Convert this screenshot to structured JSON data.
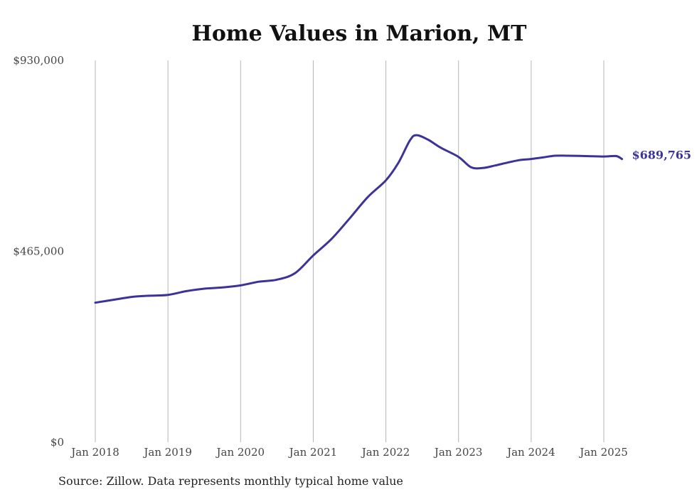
{
  "chart_data": {
    "type": "line",
    "title": "Home Values in Marion, MT",
    "xlabel": "",
    "ylabel": "",
    "ylim": [
      0,
      930000
    ],
    "yticks": [
      {
        "value": 0,
        "label": "$0"
      },
      {
        "value": 465000,
        "label": "$465,000"
      },
      {
        "value": 930000,
        "label": "$930,000"
      }
    ],
    "xticks": [
      {
        "value": 2018.0,
        "label": "Jan 2018"
      },
      {
        "value": 2019.0,
        "label": "Jan 2019"
      },
      {
        "value": 2020.0,
        "label": "Jan 2020"
      },
      {
        "value": 2021.0,
        "label": "Jan 2021"
      },
      {
        "value": 2022.0,
        "label": "Jan 2022"
      },
      {
        "value": 2023.0,
        "label": "Jan 2023"
      },
      {
        "value": 2024.0,
        "label": "Jan 2024"
      },
      {
        "value": 2025.0,
        "label": "Jan 2025"
      }
    ],
    "grid": {
      "vertical": true,
      "horizontal": false
    },
    "line_color": "#3c3399",
    "series": [
      {
        "name": "",
        "points": [
          [
            2018.0,
            340000
          ],
          [
            2018.25,
            347000
          ],
          [
            2018.5,
            354000
          ],
          [
            2018.75,
            357000
          ],
          [
            2019.0,
            359000
          ],
          [
            2019.25,
            368000
          ],
          [
            2019.5,
            374000
          ],
          [
            2019.75,
            377000
          ],
          [
            2020.0,
            382000
          ],
          [
            2020.25,
            391000
          ],
          [
            2020.5,
            396000
          ],
          [
            2020.75,
            412000
          ],
          [
            2021.0,
            455000
          ],
          [
            2021.25,
            495000
          ],
          [
            2021.5,
            545000
          ],
          [
            2021.75,
            597000
          ],
          [
            2022.0,
            638000
          ],
          [
            2022.17,
            680000
          ],
          [
            2022.33,
            735000
          ],
          [
            2022.42,
            748000
          ],
          [
            2022.58,
            737000
          ],
          [
            2022.75,
            718000
          ],
          [
            2023.0,
            695000
          ],
          [
            2023.17,
            670000
          ],
          [
            2023.33,
            668000
          ],
          [
            2023.5,
            674000
          ],
          [
            2023.67,
            681000
          ],
          [
            2023.83,
            687000
          ],
          [
            2024.0,
            690000
          ],
          [
            2024.17,
            694000
          ],
          [
            2024.33,
            698000
          ],
          [
            2024.5,
            698000
          ],
          [
            2024.75,
            697000
          ],
          [
            2025.0,
            696000
          ],
          [
            2025.17,
            697000
          ],
          [
            2025.25,
            689765
          ]
        ]
      }
    ],
    "end_label": "$689,765"
  },
  "source_note": "Source: Zillow. Data represents monthly typical home value"
}
